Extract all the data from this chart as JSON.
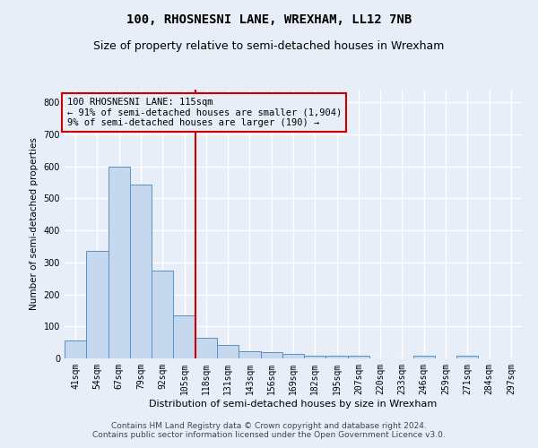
{
  "title": "100, RHOSNESNI LANE, WREXHAM, LL12 7NB",
  "subtitle": "Size of property relative to semi-detached houses in Wrexham",
  "xlabel": "Distribution of semi-detached houses by size in Wrexham",
  "ylabel": "Number of semi-detached properties",
  "categories": [
    "41sqm",
    "54sqm",
    "67sqm",
    "79sqm",
    "92sqm",
    "105sqm",
    "118sqm",
    "131sqm",
    "143sqm",
    "156sqm",
    "169sqm",
    "182sqm",
    "195sqm",
    "207sqm",
    "220sqm",
    "233sqm",
    "246sqm",
    "259sqm",
    "271sqm",
    "284sqm",
    "297sqm"
  ],
  "values": [
    55,
    335,
    598,
    542,
    275,
    135,
    65,
    42,
    22,
    20,
    15,
    8,
    8,
    8,
    0,
    0,
    8,
    0,
    8,
    0,
    0
  ],
  "bar_color": "#c5d8ee",
  "bar_edge_color": "#5a90c0",
  "vline_color": "#cc0000",
  "annotation_box_color": "#cc0000",
  "annotation_lines": [
    "100 RHOSNESNI LANE: 115sqm",
    "← 91% of semi-detached houses are smaller (1,904)",
    "9% of semi-detached houses are larger (190) →"
  ],
  "ylim": [
    0,
    840
  ],
  "yticks": [
    0,
    100,
    200,
    300,
    400,
    500,
    600,
    700,
    800
  ],
  "footer_line1": "Contains HM Land Registry data © Crown copyright and database right 2024.",
  "footer_line2": "Contains public sector information licensed under the Open Government Licence v3.0.",
  "background_color": "#e8eef8",
  "grid_color": "#ffffff",
  "title_fontsize": 10,
  "subtitle_fontsize": 9,
  "xlabel_fontsize": 8,
  "ylabel_fontsize": 7.5,
  "tick_fontsize": 7,
  "annotation_fontsize": 7.5,
  "footer_fontsize": 6.5
}
